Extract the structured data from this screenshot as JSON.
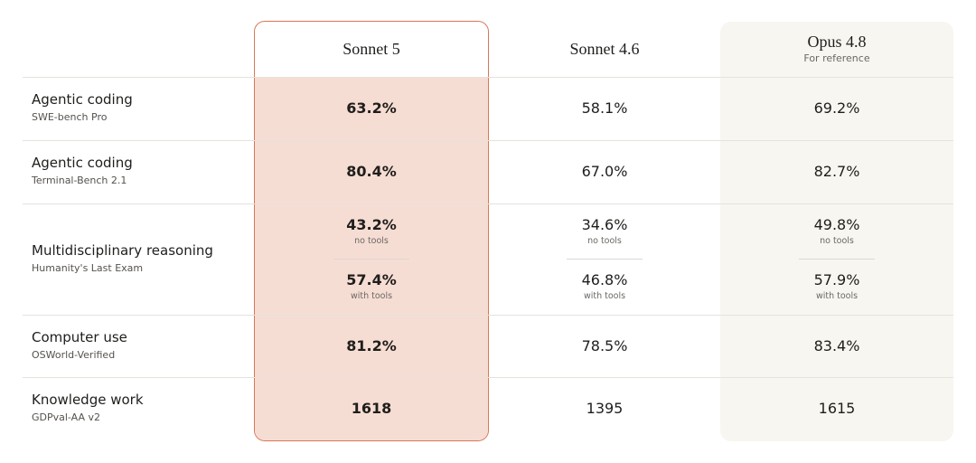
{
  "table": {
    "columns": [
      {
        "name": "Sonnet 5"
      },
      {
        "name": "Sonnet 4.6"
      },
      {
        "name": "Opus 4.8",
        "subtitle": "For reference"
      }
    ],
    "rows": [
      {
        "label": "Agentic coding",
        "sublabel": "SWE-bench Pro",
        "cells": [
          [
            {
              "value": "63.2%"
            }
          ],
          [
            {
              "value": "58.1%"
            }
          ],
          [
            {
              "value": "69.2%"
            }
          ]
        ]
      },
      {
        "label": "Agentic coding",
        "sublabel": "Terminal-Bench 2.1",
        "cells": [
          [
            {
              "value": "80.4%"
            }
          ],
          [
            {
              "value": "67.0%"
            }
          ],
          [
            {
              "value": "82.7%"
            }
          ]
        ]
      },
      {
        "label": "Multidisciplinary reasoning",
        "sublabel": "Humanity's Last Exam",
        "cells": [
          [
            {
              "value": "43.2%",
              "note": "no tools"
            },
            {
              "value": "57.4%",
              "note": "with tools"
            }
          ],
          [
            {
              "value": "34.6%",
              "note": "no tools"
            },
            {
              "value": "46.8%",
              "note": "with tools"
            }
          ],
          [
            {
              "value": "49.8%",
              "note": "no tools"
            },
            {
              "value": "57.9%",
              "note": "with tools"
            }
          ]
        ]
      },
      {
        "label": "Computer use",
        "sublabel": "OSWorld-Verified",
        "cells": [
          [
            {
              "value": "81.2%"
            }
          ],
          [
            {
              "value": "78.5%"
            }
          ],
          [
            {
              "value": "83.4%"
            }
          ]
        ]
      },
      {
        "label": "Knowledge work",
        "sublabel": "GDPval-AA v2",
        "cells": [
          [
            {
              "value": "1618"
            }
          ],
          [
            {
              "value": "1395"
            }
          ],
          [
            {
              "value": "1615"
            }
          ]
        ]
      }
    ]
  }
}
